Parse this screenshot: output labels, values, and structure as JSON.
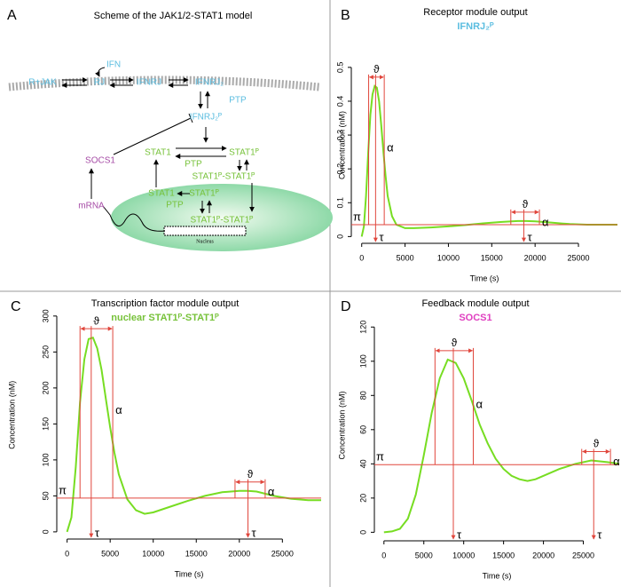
{
  "diagram": {
    "panel": "A",
    "title": "Scheme of the JAK1/2-STAT1 model",
    "nodes": [
      {
        "label": "R+JAK",
        "color": "#5bbde0"
      },
      {
        "label": "RJ",
        "color": "#5bbde0"
      },
      {
        "label": "IFN",
        "color": "#5bbde0"
      },
      {
        "label": "IFNRJ",
        "color": "#5bbde0"
      },
      {
        "label": "IFNRJ₂",
        "color": "#5bbde0"
      },
      {
        "label": "PTP",
        "color": "#5bbde0"
      },
      {
        "label": "IFNRJ₂ᴾ",
        "color": "#5bbde0"
      },
      {
        "label": "SOCS1",
        "color": "#a64ca6"
      },
      {
        "label": "STAT1",
        "color": "#77c23a"
      },
      {
        "label": "STAT1ᴾ",
        "color": "#77c23a"
      },
      {
        "label": "PTP",
        "color": "#77c23a"
      },
      {
        "label": "STAT1ᴾ-STAT1ᴾ",
        "color": "#77c23a"
      },
      {
        "label": "mRNA",
        "color": "#a64ca6"
      },
      {
        "label": "STAT1",
        "color": "#77c23a"
      },
      {
        "label": "STAT1ᴾ",
        "color": "#77c23a"
      },
      {
        "label": "PTP",
        "color": "#77c23a"
      },
      {
        "label": "STAT1ᴾ-STAT1ᴾ",
        "color": "#77c23a"
      }
    ],
    "nucleus_label": "Nucleus"
  },
  "chart_data": [
    {
      "type": "line",
      "panel": "B",
      "title": "Receptor module output",
      "subtitle": "IFNRJ₂ᴾ",
      "subtitle_color": "#5bbde0",
      "x_label": "Time (s)",
      "y_label": "Concentration (nM)",
      "color": "#77dd22",
      "annotation_color": "#e0463c",
      "x": [
        0,
        250,
        500,
        750,
        1000,
        1250,
        1500,
        1750,
        2000,
        2250,
        2500,
        2750,
        3000,
        3500,
        4000,
        5000,
        6000,
        8000,
        10000,
        12000,
        14000,
        16000,
        18000,
        19000,
        20000,
        22000,
        24000,
        26000,
        28000,
        29500
      ],
      "values": [
        0,
        0.03,
        0.12,
        0.25,
        0.36,
        0.42,
        0.445,
        0.44,
        0.4,
        0.33,
        0.25,
        0.18,
        0.12,
        0.06,
        0.035,
        0.025,
        0.025,
        0.027,
        0.03,
        0.034,
        0.039,
        0.043,
        0.046,
        0.046,
        0.045,
        0.041,
        0.037,
        0.035,
        0.035,
        0.035
      ],
      "xlim": [
        -1200,
        29500
      ],
      "ylim": [
        -0.02,
        0.56
      ],
      "xticks": [
        0,
        5000,
        10000,
        15000,
        20000,
        25000
      ],
      "yticks": [
        0,
        0.1,
        0.2,
        0.3,
        0.4,
        0.5
      ],
      "pi": {
        "label": "π",
        "value": 0.035
      },
      "peaks": [
        {
          "x": 1600,
          "y": 0.445,
          "start": 800,
          "end": 2600,
          "tau": "τ",
          "width": "ϑ",
          "amp": "α"
        },
        {
          "x": 18700,
          "y": 0.046,
          "start": 17200,
          "end": 20500,
          "tau": "τ",
          "width": "ϑ",
          "amp": "α"
        }
      ]
    },
    {
      "type": "line",
      "panel": "C",
      "title": "Transcription factor module output",
      "subtitle": "nuclear STAT1ᴾ-STAT1ᴾ",
      "subtitle_color": "#77c23a",
      "x_label": "Time (s)",
      "y_label": "Concentration (nM)",
      "color": "#77dd22",
      "annotation_color": "#e0463c",
      "x": [
        0,
        500,
        1000,
        1500,
        2000,
        2500,
        3000,
        3500,
        4000,
        4500,
        5000,
        5500,
        6000,
        7000,
        8000,
        9000,
        10000,
        12000,
        14000,
        16000,
        18000,
        20000,
        21000,
        22000,
        24000,
        26000,
        28000,
        29500
      ],
      "values": [
        0,
        20,
        90,
        180,
        240,
        268,
        270,
        255,
        225,
        185,
        145,
        110,
        80,
        45,
        30,
        25,
        27,
        35,
        43,
        50,
        55,
        57,
        57,
        56,
        50,
        46,
        44,
        44
      ],
      "xlim": [
        -1200,
        29500
      ],
      "ylim": [
        -10,
        335
      ],
      "xticks": [
        0,
        5000,
        10000,
        15000,
        20000,
        25000
      ],
      "yticks": [
        0,
        50,
        100,
        150,
        200,
        250,
        300
      ],
      "pi": {
        "label": "π",
        "value": 47
      },
      "peaks": [
        {
          "x": 2800,
          "y": 270,
          "start": 1500,
          "end": 5300,
          "tau": "τ",
          "width": "ϑ",
          "amp": "α"
        },
        {
          "x": 21000,
          "y": 57,
          "start": 19500,
          "end": 23000,
          "tau": "τ",
          "width": "ϑ",
          "amp": "α"
        }
      ]
    },
    {
      "type": "line",
      "panel": "D",
      "title": "Feedback module output",
      "subtitle": "SOCS1",
      "subtitle_color": "#e040c0",
      "x_label": "Time (s)",
      "y_label": "Concentration (nM)",
      "color": "#77dd22",
      "annotation_color": "#e0463c",
      "x": [
        0,
        1000,
        2000,
        3000,
        4000,
        5000,
        6000,
        7000,
        8000,
        9000,
        10000,
        11000,
        12000,
        13000,
        14000,
        15000,
        16000,
        17000,
        18000,
        19000,
        20000,
        22000,
        24000,
        26000,
        28000,
        29500
      ],
      "values": [
        0,
        0.5,
        2,
        8,
        22,
        45,
        70,
        90,
        101,
        99,
        90,
        77,
        63,
        52,
        43,
        37,
        33,
        31,
        30,
        31,
        33,
        37,
        40,
        42,
        41,
        40
      ],
      "xlim": [
        -1200,
        29500
      ],
      "ylim": [
        -5,
        130
      ],
      "xticks": [
        0,
        5000,
        10000,
        15000,
        20000,
        25000
      ],
      "yticks": [
        0,
        20,
        40,
        60,
        80,
        100,
        120
      ],
      "pi": {
        "label": "π",
        "value": 39.5
      },
      "peaks": [
        {
          "x": 8700,
          "y": 101,
          "start": 6400,
          "end": 11200,
          "tau": "τ",
          "width": "ϑ",
          "amp": "α"
        },
        {
          "x": 26300,
          "y": 42,
          "start": 24800,
          "end": 28400,
          "tau": "τ",
          "width": "ϑ",
          "amp": "α"
        }
      ]
    }
  ]
}
